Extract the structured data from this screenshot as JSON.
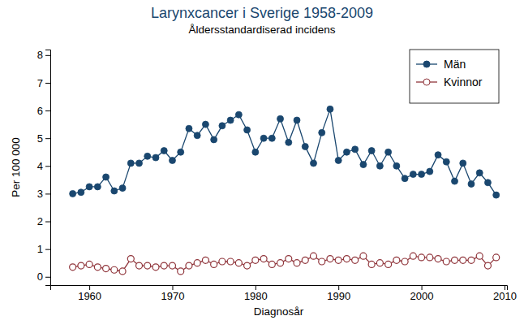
{
  "chart_data": {
    "type": "line",
    "title": "Larynxcancer i Sverige 1958-2009",
    "subtitle": "Åldersstandardiserad incidens",
    "x_label": "Diagnosår",
    "y_label": "Per 100 000",
    "x": [
      1958,
      1959,
      1960,
      1961,
      1962,
      1963,
      1964,
      1965,
      1966,
      1967,
      1968,
      1969,
      1970,
      1971,
      1972,
      1973,
      1974,
      1975,
      1976,
      1977,
      1978,
      1979,
      1980,
      1981,
      1982,
      1983,
      1984,
      1985,
      1986,
      1987,
      1988,
      1989,
      1990,
      1991,
      1992,
      1993,
      1994,
      1995,
      1996,
      1997,
      1998,
      1999,
      2000,
      2001,
      2002,
      2003,
      2004,
      2005,
      2006,
      2007,
      2008,
      2009
    ],
    "series": [
      {
        "name": "Män",
        "color": "#1a476f",
        "marker": "circle",
        "line_style": "solid",
        "values": [
          3.0,
          3.05,
          3.25,
          3.25,
          3.6,
          3.1,
          3.2,
          4.1,
          4.1,
          4.35,
          4.3,
          4.55,
          4.2,
          4.5,
          5.35,
          5.1,
          5.5,
          4.95,
          5.45,
          5.65,
          5.85,
          5.3,
          4.5,
          5.0,
          5.0,
          5.7,
          4.85,
          5.65,
          4.7,
          4.1,
          5.2,
          6.05,
          4.2,
          4.5,
          4.6,
          4.05,
          4.55,
          4.0,
          4.5,
          4.0,
          3.55,
          3.7,
          3.7,
          3.8,
          4.4,
          4.15,
          3.45,
          4.1,
          3.35,
          3.75,
          3.4,
          2.95
        ]
      },
      {
        "name": "Kvinnor",
        "color": "#90353b",
        "marker": "hollow_circle",
        "line_style": "solid",
        "values": [
          0.35,
          0.4,
          0.45,
          0.35,
          0.3,
          0.25,
          0.2,
          0.65,
          0.4,
          0.4,
          0.35,
          0.4,
          0.4,
          0.2,
          0.4,
          0.5,
          0.6,
          0.45,
          0.55,
          0.55,
          0.5,
          0.4,
          0.6,
          0.65,
          0.45,
          0.5,
          0.65,
          0.5,
          0.6,
          0.75,
          0.55,
          0.65,
          0.6,
          0.65,
          0.6,
          0.75,
          0.45,
          0.5,
          0.45,
          0.6,
          0.55,
          0.75,
          0.7,
          0.7,
          0.65,
          0.55,
          0.6,
          0.6,
          0.6,
          0.75,
          0.4,
          0.7
        ]
      }
    ],
    "xlim": [
      1955.3,
      2010.3
    ],
    "xticks": [
      1960,
      1970,
      1980,
      1990,
      2000,
      2010
    ],
    "ylim": [
      -0.3,
      8.2
    ],
    "yticks": [
      0,
      1,
      2,
      3,
      4,
      5,
      6,
      7,
      8
    ],
    "grid": false,
    "legend": "top-right"
  }
}
